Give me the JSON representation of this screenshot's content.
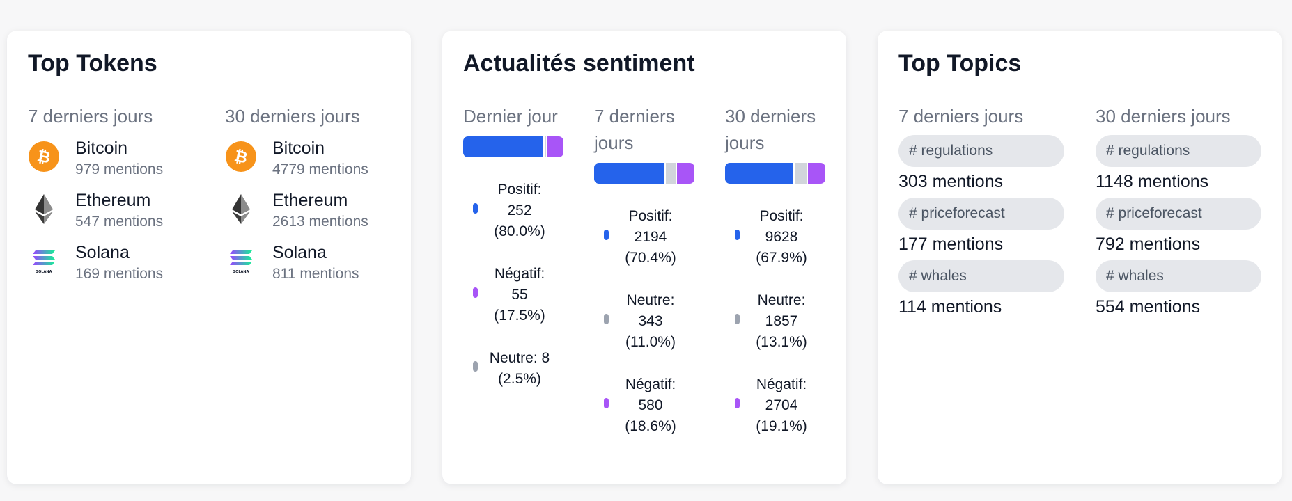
{
  "tokens_card": {
    "title": "Top Tokens",
    "columns": [
      {
        "heading": "7 derniers jours",
        "items": [
          {
            "name": "Bitcoin",
            "mentions": "979 mentions",
            "icon": "bitcoin-icon"
          },
          {
            "name": "Ethereum",
            "mentions": "547 mentions",
            "icon": "ethereum-icon"
          },
          {
            "name": "Solana",
            "mentions": "169 mentions",
            "icon": "solana-icon"
          }
        ]
      },
      {
        "heading": "30 derniers jours",
        "items": [
          {
            "name": "Bitcoin",
            "mentions": "4779 mentions",
            "icon": "bitcoin-icon"
          },
          {
            "name": "Ethereum",
            "mentions": "2613 mentions",
            "icon": "ethereum-icon"
          },
          {
            "name": "Solana",
            "mentions": "811 mentions",
            "icon": "solana-icon"
          }
        ]
      }
    ],
    "solana_wordmark": "SOLANA"
  },
  "sentiment_card": {
    "title": "Actualités sentiment",
    "colors": {
      "positif": "#2563eb",
      "neutre": "#d1d5db",
      "negatif": "#a855f7",
      "neutre_dot": "#9ca3af"
    },
    "columns": [
      {
        "heading_lines": [
          "Dernier jour"
        ],
        "bar_fractions": {
          "positif": 0.8,
          "neutre": 0.025,
          "negatif": 0.175
        },
        "legend": [
          {
            "key": "positif",
            "lines": [
              "Positif:",
              "252",
              "(80.0%)"
            ]
          },
          {
            "key": "negatif",
            "lines": [
              "Négatif:",
              "55",
              "(17.5%)"
            ]
          },
          {
            "key": "neutre",
            "lines": [
              "Neutre: 8",
              "(2.5%)"
            ]
          }
        ]
      },
      {
        "heading_lines": [
          "7 derniers",
          "jours"
        ],
        "bar_fractions": {
          "positif": 0.704,
          "neutre": 0.11,
          "negatif": 0.186
        },
        "legend": [
          {
            "key": "positif",
            "lines": [
              "Positif:",
              "2194",
              "(70.4%)"
            ]
          },
          {
            "key": "neutre",
            "lines": [
              "Neutre:",
              "343",
              "(11.0%)"
            ]
          },
          {
            "key": "negatif",
            "lines": [
              "Négatif:",
              "580",
              "(18.6%)"
            ]
          }
        ]
      },
      {
        "heading_lines": [
          "30 derniers",
          "jours"
        ],
        "bar_fractions": {
          "positif": 0.679,
          "neutre": 0.131,
          "negatif": 0.191
        },
        "legend": [
          {
            "key": "positif",
            "lines": [
              "Positif:",
              "9628",
              "(67.9%)"
            ]
          },
          {
            "key": "neutre",
            "lines": [
              "Neutre:",
              "1857",
              "(13.1%)"
            ]
          },
          {
            "key": "negatif",
            "lines": [
              "Négatif:",
              "2704",
              "(19.1%)"
            ]
          }
        ]
      }
    ]
  },
  "topics_card": {
    "title": "Top Topics",
    "columns": [
      {
        "heading": "7 derniers jours",
        "items": [
          {
            "tag": "# regulations",
            "mentions": "303 mentions"
          },
          {
            "tag": "# priceforecast",
            "mentions": "177 mentions"
          },
          {
            "tag": "# whales",
            "mentions": "114 mentions"
          }
        ]
      },
      {
        "heading": "30 derniers jours",
        "items": [
          {
            "tag": "# regulations",
            "mentions": "1148 mentions"
          },
          {
            "tag": "# priceforecast",
            "mentions": "792 mentions"
          },
          {
            "tag": "# whales",
            "mentions": "554 mentions"
          }
        ]
      }
    ]
  }
}
